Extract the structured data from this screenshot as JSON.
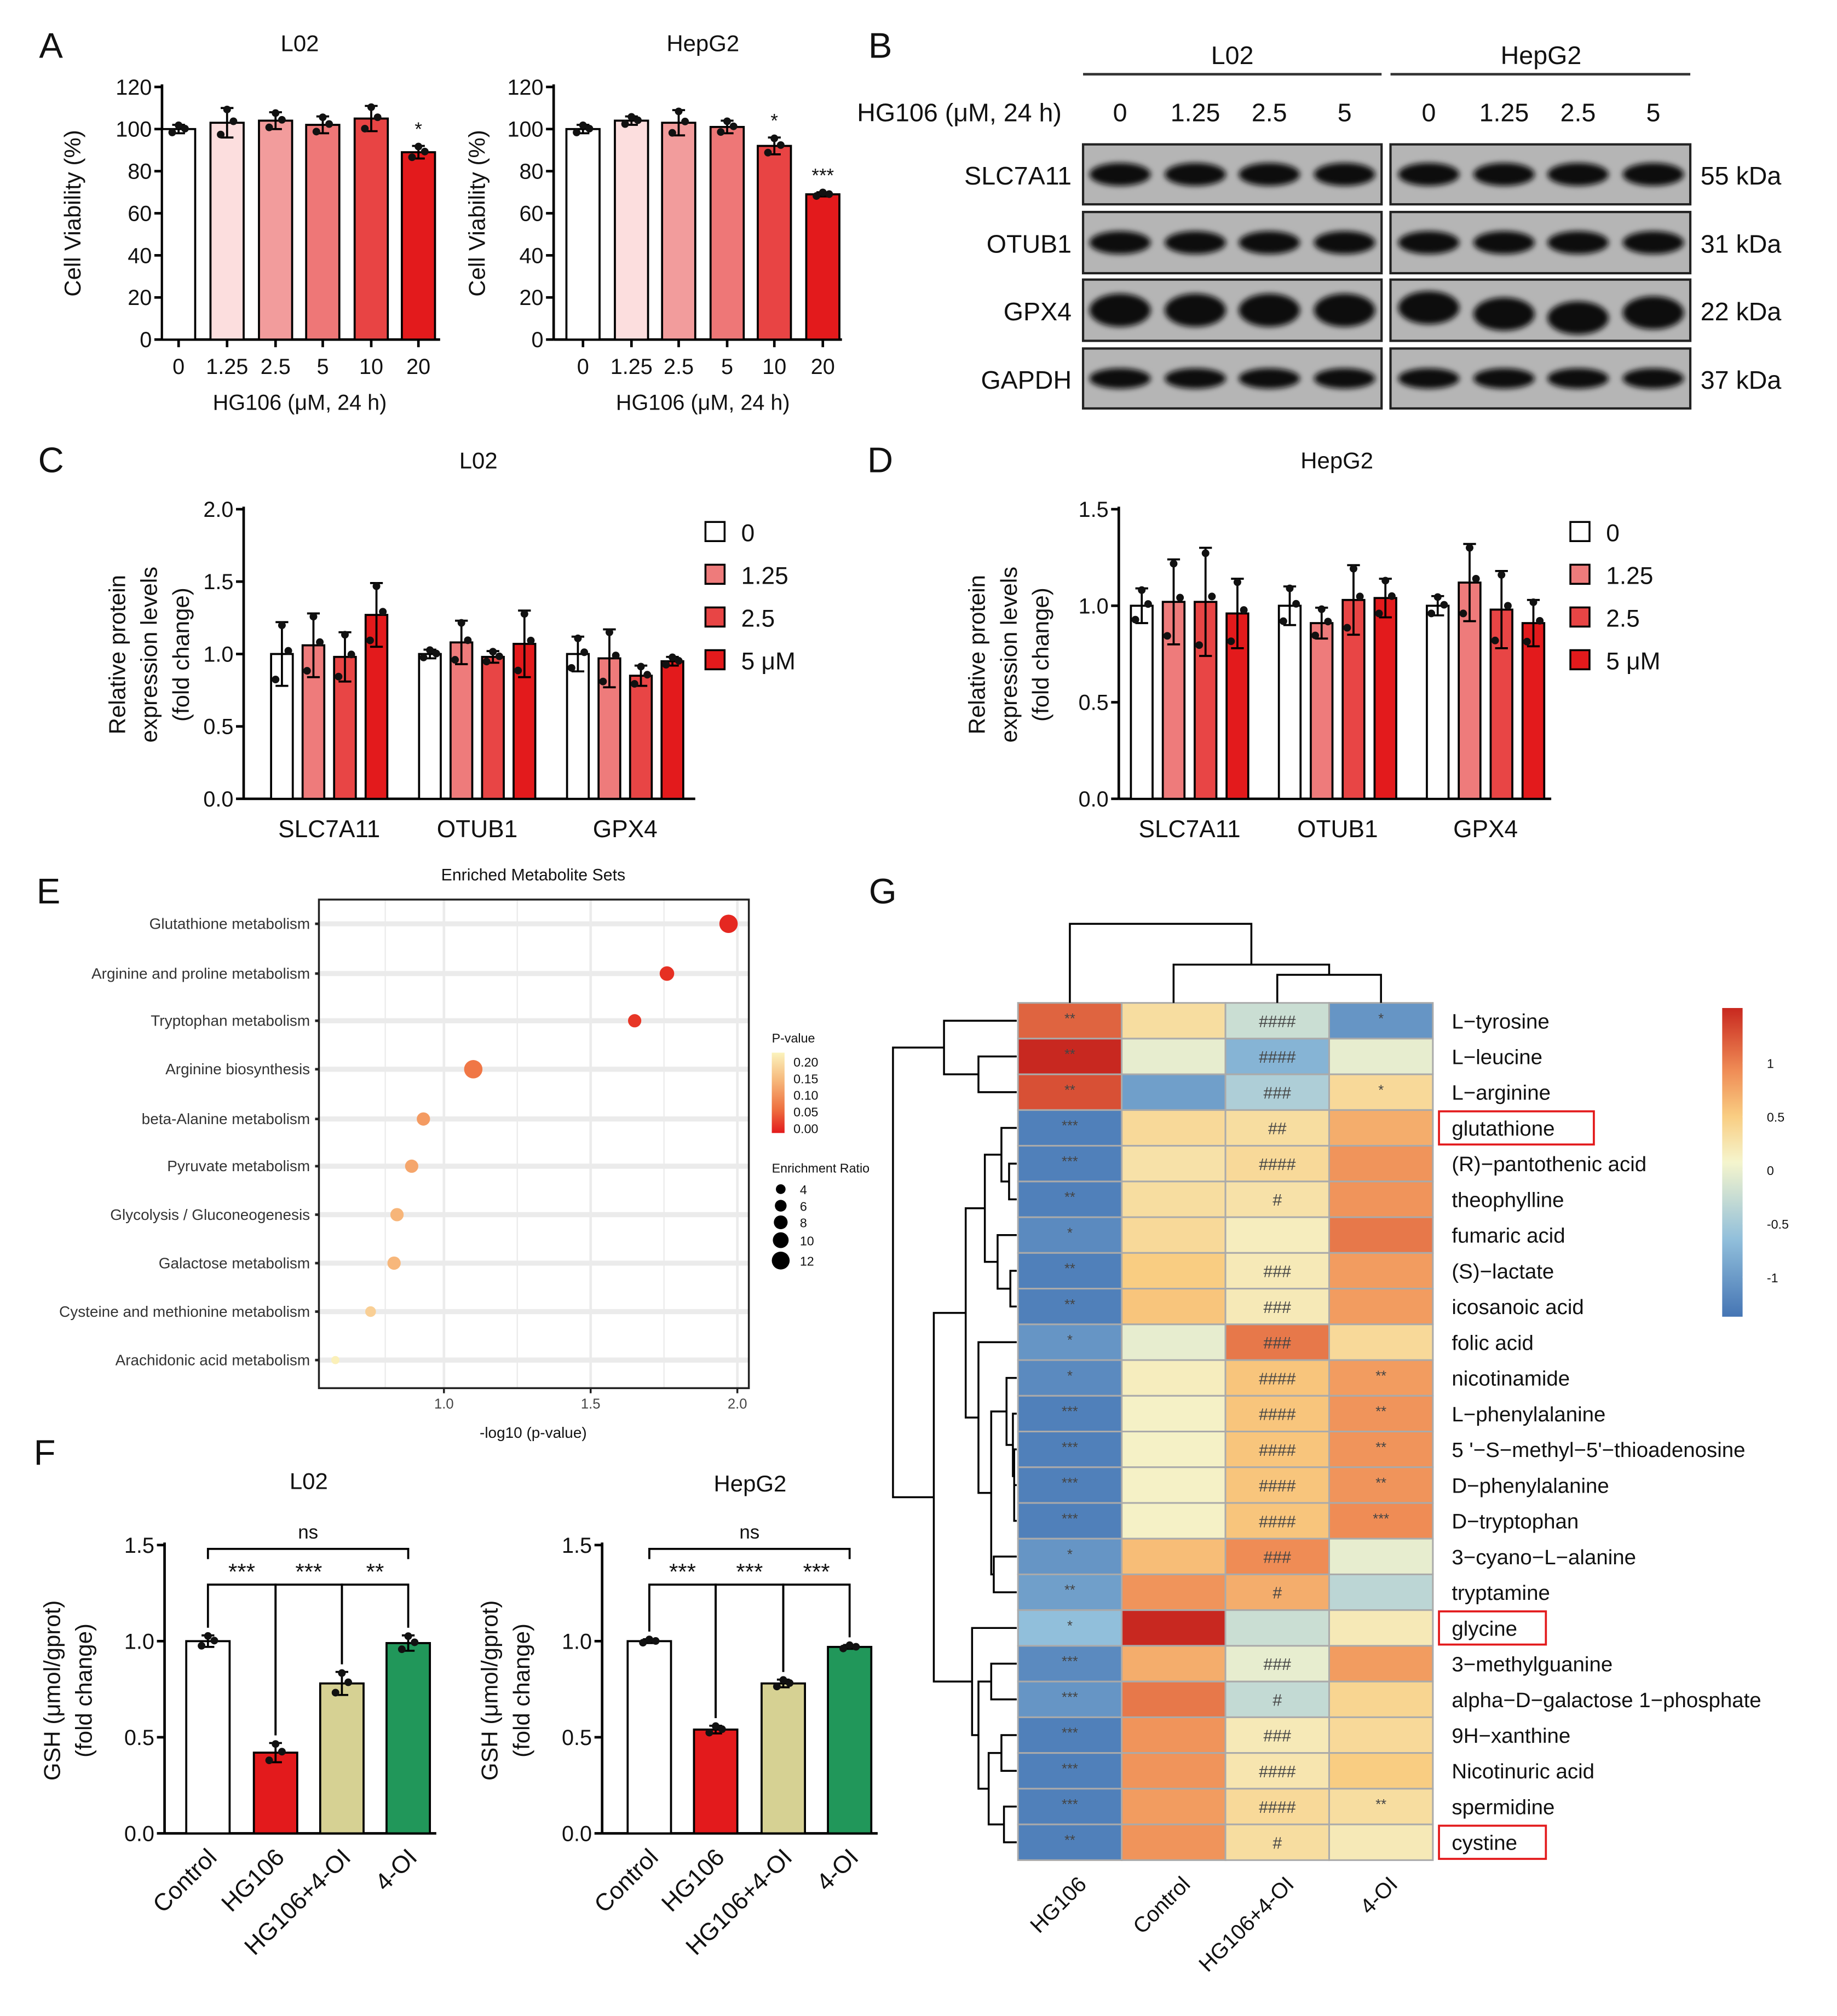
{
  "panels": {
    "A": "A",
    "B": "B",
    "C": "C",
    "D": "D",
    "E": "E",
    "F": "F",
    "G": "G"
  },
  "western_blot": {
    "cell_lines": [
      "L02",
      "HepG2"
    ],
    "treatment_label": "HG106 (μM, 24 h)",
    "lanes": [
      "0",
      "1.25",
      "2.5",
      "5"
    ],
    "proteins": [
      {
        "name": "SLC7A11",
        "size": "55 kDa"
      },
      {
        "name": "OTUB1",
        "size": "31 kDa"
      },
      {
        "name": "GPX4",
        "size": "22 kDa"
      },
      {
        "name": "GAPDH",
        "size": "37 kDa"
      }
    ]
  },
  "chart_data": [
    {
      "type": "bar",
      "title": "L02",
      "xlabel": "HG106 (μM, 24 h)",
      "ylabel": [
        "Cell Viability (%)"
      ],
      "categories": [
        "0",
        "1.25",
        "2.5",
        "5",
        "10",
        "20"
      ],
      "values": [
        100,
        103,
        104,
        102,
        105,
        89
      ],
      "errors": [
        2,
        7,
        4,
        4,
        6,
        3
      ],
      "significance": [
        "",
        "",
        "",
        "",
        "",
        "*"
      ],
      "colors": [
        "#ffffff",
        "#fcdede",
        "#f29c9c",
        "#ee7777",
        "#e84444",
        "#e31a1c"
      ],
      "ylim": [
        0,
        120
      ],
      "ytick_labels": [
        "0",
        "20",
        "40",
        "60",
        "80",
        "100",
        "120"
      ]
    },
    {
      "type": "bar",
      "title": "HepG2",
      "xlabel": "HG106 (μM, 24 h)",
      "ylabel": [
        "Cell Viability (%)"
      ],
      "categories": [
        "0",
        "1.25",
        "2.5",
        "5",
        "10",
        "20"
      ],
      "values": [
        100,
        104,
        103,
        101,
        92,
        69
      ],
      "errors": [
        2,
        2,
        6,
        3,
        4,
        1
      ],
      "significance": [
        "",
        "",
        "",
        "",
        "*",
        "***"
      ],
      "colors": [
        "#ffffff",
        "#fcdede",
        "#f29c9c",
        "#ee7777",
        "#e84444",
        "#e31a1c"
      ],
      "ylim": [
        0,
        120
      ],
      "ytick_labels": [
        "0",
        "20",
        "40",
        "60",
        "80",
        "100",
        "120"
      ]
    },
    {
      "type": "bar",
      "title": "L02",
      "ylabel": [
        "Relative protein",
        "expression levels",
        "(fold change)"
      ],
      "categories": [
        "SLC7A11",
        "OTUB1",
        "GPX4"
      ],
      "series": [
        {
          "name": "0",
          "color": "#ffffff",
          "values": [
            1.0,
            1.0,
            1.0
          ],
          "errors": [
            0.22,
            0.03,
            0.12
          ]
        },
        {
          "name": "1.25",
          "color": "#ee7b7b",
          "values": [
            1.06,
            1.08,
            0.97
          ],
          "errors": [
            0.22,
            0.15,
            0.2
          ]
        },
        {
          "name": "2.5",
          "color": "#e84545",
          "values": [
            0.98,
            0.98,
            0.85
          ],
          "errors": [
            0.17,
            0.04,
            0.07
          ]
        },
        {
          "name": "5 μM",
          "color": "#e31a1c",
          "values": [
            1.27,
            1.07,
            0.95
          ],
          "errors": [
            0.22,
            0.23,
            0.03
          ]
        }
      ],
      "ylim": [
        0,
        2.0
      ],
      "ytick_labels": [
        "0.0",
        "0.5",
        "1.0",
        "1.5",
        "2.0"
      ],
      "legend": "right"
    },
    {
      "type": "bar",
      "title": "HepG2",
      "ylabel": [
        "Relative protein",
        "expression levels",
        "(fold change)"
      ],
      "categories": [
        "SLC7A11",
        "OTUB1",
        "GPX4"
      ],
      "series": [
        {
          "name": "0",
          "color": "#ffffff",
          "values": [
            1.0,
            1.0,
            1.0
          ],
          "errors": [
            0.09,
            0.1,
            0.05
          ]
        },
        {
          "name": "1.25",
          "color": "#ee7b7b",
          "values": [
            1.02,
            0.91,
            1.12
          ],
          "errors": [
            0.22,
            0.08,
            0.2
          ]
        },
        {
          "name": "2.5",
          "color": "#e84545",
          "values": [
            1.02,
            1.03,
            0.98
          ],
          "errors": [
            0.28,
            0.18,
            0.2
          ]
        },
        {
          "name": "5 μM",
          "color": "#e31a1c",
          "values": [
            0.96,
            1.04,
            0.91
          ],
          "errors": [
            0.18,
            0.1,
            0.12
          ]
        }
      ],
      "ylim": [
        0,
        1.5
      ],
      "ytick_labels": [
        "0.0",
        "0.5",
        "1.0",
        "1.5"
      ],
      "legend": "right"
    },
    {
      "type": "scatter",
      "title": "Enriched Metabolite Sets",
      "xlabel": "-log10 (p-value)",
      "xlim": [
        0.6,
        2.05
      ],
      "xtick_labels": [
        "1.0",
        "1.5",
        "2.0"
      ],
      "pathways": [
        {
          "name": "Glutathione metabolism",
          "neg_log10_p": 1.97,
          "p_value": 0.011,
          "enrichment_ratio": 10
        },
        {
          "name": "Arginine and proline metabolism",
          "neg_log10_p": 1.76,
          "p_value": 0.017,
          "enrichment_ratio": 7
        },
        {
          "name": "Tryptophan metabolism",
          "neg_log10_p": 1.65,
          "p_value": 0.022,
          "enrichment_ratio": 6
        },
        {
          "name": "Arginine biosynthesis",
          "neg_log10_p": 1.1,
          "p_value": 0.079,
          "enrichment_ratio": 10
        },
        {
          "name": "beta-Alanine metabolism",
          "neg_log10_p": 0.93,
          "p_value": 0.117,
          "enrichment_ratio": 6
        },
        {
          "name": "Pyruvate metabolism",
          "neg_log10_p": 0.89,
          "p_value": 0.129,
          "enrichment_ratio": 6
        },
        {
          "name": "Glycolysis / Gluconeogenesis",
          "neg_log10_p": 0.84,
          "p_value": 0.145,
          "enrichment_ratio": 6
        },
        {
          "name": "Galactose metabolism",
          "neg_log10_p": 0.83,
          "p_value": 0.148,
          "enrichment_ratio": 6
        },
        {
          "name": "Cysteine and methionine metabolism",
          "neg_log10_p": 0.75,
          "p_value": 0.178,
          "enrichment_ratio": 4
        },
        {
          "name": "Arachidonic acid metabolism",
          "neg_log10_p": 0.63,
          "p_value": 0.234,
          "enrichment_ratio": 2
        }
      ],
      "color_legend": {
        "title": "P-value",
        "labels": [
          "0.20",
          "0.15",
          "0.10",
          "0.05",
          "0.00"
        ]
      },
      "size_legend": {
        "title": "Enrichment Ratio",
        "labels": [
          "4",
          "6",
          "8",
          "10",
          "12"
        ]
      }
    },
    {
      "type": "bar",
      "title": "L02",
      "ylabel": [
        "GSH (μmol/gprot)",
        "(fold change)"
      ],
      "categories": [
        "Control",
        "HG106",
        "HG106+4-OI",
        "4-OI"
      ],
      "values": [
        1.0,
        0.42,
        0.78,
        0.99
      ],
      "errors": [
        0.03,
        0.05,
        0.06,
        0.04
      ],
      "colors": [
        "#ffffff",
        "#e31a1c",
        "#d6d193",
        "#21975a"
      ],
      "comparisons": [
        {
          "from": 0,
          "to": 1,
          "label": "***"
        },
        {
          "from": 1,
          "to": 2,
          "label": "***"
        },
        {
          "from": 2,
          "to": 3,
          "label": "**"
        },
        {
          "from": 0,
          "to": 3,
          "label": "ns"
        }
      ],
      "ylim": [
        0,
        1.5
      ],
      "ytick_labels": [
        "0.0",
        "0.5",
        "1.0",
        "1.5"
      ]
    },
    {
      "type": "bar",
      "title": "HepG2",
      "ylabel": [
        "GSH (μmol/gprot)",
        "(fold change)"
      ],
      "categories": [
        "Control",
        "HG106",
        "HG106+4-OI",
        "4-OI"
      ],
      "values": [
        1.0,
        0.54,
        0.78,
        0.97
      ],
      "errors": [
        0.01,
        0.02,
        0.02,
        0.01
      ],
      "colors": [
        "#ffffff",
        "#e31a1c",
        "#d6d193",
        "#21975a"
      ],
      "comparisons": [
        {
          "from": 0,
          "to": 1,
          "label": "***"
        },
        {
          "from": 1,
          "to": 2,
          "label": "***"
        },
        {
          "from": 2,
          "to": 3,
          "label": "***"
        },
        {
          "from": 0,
          "to": 3,
          "label": "ns"
        }
      ],
      "ylim": [
        0,
        1.5
      ],
      "ytick_labels": [
        "0.0",
        "0.5",
        "1.0",
        "1.5"
      ]
    },
    {
      "type": "heatmap",
      "columns": [
        "HG106",
        "Control",
        "HG106+4-OI",
        "4-OI"
      ],
      "colorbar": {
        "labels": [
          "1",
          "0.5",
          "0",
          "-0.5",
          "-1"
        ],
        "range": [
          -1.4,
          1.4
        ]
      },
      "rows": [
        {
          "name": "L−tyrosine",
          "values": [
            1.1,
            0.3,
            -0.3,
            -1.1
          ],
          "marks": [
            "**",
            "",
            "####",
            "*"
          ]
        },
        {
          "name": "L−leucine",
          "values": [
            1.4,
            -0.1,
            -0.8,
            -0.1
          ],
          "marks": [
            "**",
            "",
            "####",
            ""
          ]
        },
        {
          "name": "L−arginine",
          "values": [
            1.2,
            -1.0,
            -0.5,
            0.35
          ],
          "marks": [
            "**",
            "",
            "###",
            "*"
          ]
        },
        {
          "name": "glutathione",
          "values": [
            -1.3,
            0.35,
            0.3,
            0.7
          ],
          "marks": [
            "***",
            "",
            "##",
            ""
          ],
          "highlighted": true
        },
        {
          "name": "(R)−pantothenic acid",
          "values": [
            -1.3,
            0.25,
            0.35,
            0.85
          ],
          "marks": [
            "***",
            "",
            "####",
            ""
          ]
        },
        {
          "name": "theophylline",
          "values": [
            -1.3,
            0.3,
            0.25,
            0.85
          ],
          "marks": [
            "**",
            "",
            "#",
            ""
          ]
        },
        {
          "name": "fumaric acid",
          "values": [
            -1.2,
            0.35,
            0.1,
            1.0
          ],
          "marks": [
            "*",
            "",
            "",
            ""
          ]
        },
        {
          "name": "(S)−lactate",
          "values": [
            -1.3,
            0.5,
            0.15,
            0.8
          ],
          "marks": [
            "**",
            "",
            "###",
            ""
          ]
        },
        {
          "name": "icosanoic acid",
          "values": [
            -1.3,
            0.55,
            0.15,
            0.8
          ],
          "marks": [
            "**",
            "",
            "###",
            ""
          ]
        },
        {
          "name": "folic acid",
          "values": [
            -1.1,
            -0.1,
            1.0,
            0.35
          ],
          "marks": [
            "*",
            "",
            "###",
            ""
          ]
        },
        {
          "name": "nicotinamide",
          "values": [
            -1.2,
            0.1,
            0.55,
            0.8
          ],
          "marks": [
            "*",
            "",
            "####",
            "**"
          ]
        },
        {
          "name": "L−phenylalanine",
          "values": [
            -1.3,
            0.05,
            0.55,
            0.85
          ],
          "marks": [
            "***",
            "",
            "####",
            "**"
          ]
        },
        {
          "name": "5 '−S−methyl−5'−thioadenosine",
          "values": [
            -1.3,
            0.05,
            0.55,
            0.85
          ],
          "marks": [
            "***",
            "",
            "####",
            "**"
          ]
        },
        {
          "name": "D−phenylalanine",
          "values": [
            -1.3,
            0.05,
            0.55,
            0.85
          ],
          "marks": [
            "***",
            "",
            "####",
            "**"
          ]
        },
        {
          "name": "D−tryptophan",
          "values": [
            -1.3,
            0.05,
            0.55,
            0.9
          ],
          "marks": [
            "***",
            "",
            "####",
            "***"
          ]
        },
        {
          "name": "3−cyano−L−alanine",
          "values": [
            -1.1,
            0.6,
            0.9,
            -0.1
          ],
          "marks": [
            "*",
            "",
            "###",
            ""
          ]
        },
        {
          "name": "tryptamine",
          "values": [
            -1.0,
            0.85,
            0.7,
            -0.4
          ],
          "marks": [
            "**",
            "",
            "#",
            ""
          ]
        },
        {
          "name": "glycine",
          "values": [
            -0.7,
            1.4,
            -0.3,
            0.15
          ],
          "marks": [
            "*",
            "",
            "",
            ""
          ],
          "highlighted": true
        },
        {
          "name": "3−methylguanine",
          "values": [
            -1.2,
            0.7,
            -0.1,
            0.8
          ],
          "marks": [
            "***",
            "",
            "###",
            ""
          ]
        },
        {
          "name": "alpha−D−galactose 1−phosphate",
          "values": [
            -1.1,
            1.0,
            -0.35,
            0.4
          ],
          "marks": [
            "***",
            "",
            "#",
            ""
          ]
        },
        {
          "name": "9H−xanthine",
          "values": [
            -1.3,
            0.85,
            0.15,
            0.35
          ],
          "marks": [
            "***",
            "",
            "###",
            ""
          ]
        },
        {
          "name": "Nicotinuric acid",
          "values": [
            -1.3,
            0.85,
            0.2,
            0.5
          ],
          "marks": [
            "***",
            "",
            "####",
            ""
          ]
        },
        {
          "name": "spermidine",
          "values": [
            -1.3,
            0.8,
            0.35,
            0.3
          ],
          "marks": [
            "***",
            "",
            "####",
            "**"
          ]
        },
        {
          "name": "cystine",
          "values": [
            -1.3,
            0.85,
            0.3,
            0.15
          ],
          "marks": [
            "**",
            "",
            "#",
            ""
          ],
          "highlighted": true
        }
      ]
    }
  ]
}
